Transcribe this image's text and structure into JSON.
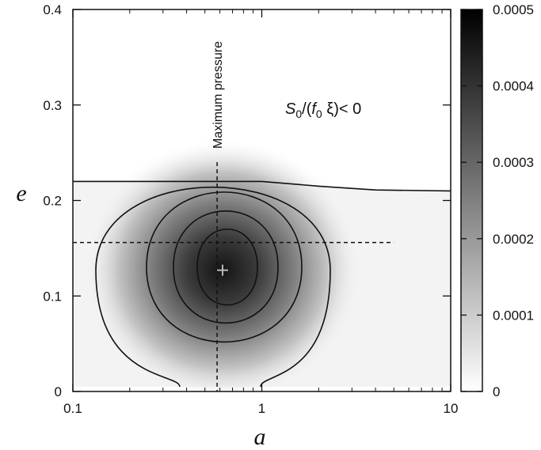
{
  "chart_data": {
    "type": "heatmap",
    "title": "",
    "xlabel": "a",
    "ylabel": "e",
    "x_scale": "log",
    "xlim": [
      0.1,
      10
    ],
    "ylim": [
      0,
      0.4
    ],
    "x_ticks": [
      "0.1",
      "1",
      "10"
    ],
    "y_ticks": [
      "0",
      "0.1",
      "0.2",
      "0.3",
      "0.4"
    ],
    "colorbar": {
      "range": [
        0,
        0.0005
      ],
      "ticks": [
        "0",
        "0.0001",
        "0.0002",
        "0.0003",
        "0.0004",
        "0.0005"
      ],
      "colormap": "white-to-black"
    },
    "peak": {
      "a": 0.62,
      "e": 0.127,
      "value": 0.0005
    },
    "boundary_e": [
      {
        "a": 0.1,
        "e": 0.22
      },
      {
        "a": 1.0,
        "e": 0.22
      },
      {
        "a": 2.0,
        "e": 0.215
      },
      {
        "a": 4.0,
        "e": 0.211
      },
      {
        "a": 10.0,
        "e": 0.21
      }
    ],
    "region_label_parts": {
      "s": "S",
      "s_sub": "0",
      "open": "/(",
      "f": "f",
      "f_sub": "0",
      "xi": " ξ)",
      "rel": "< 0"
    },
    "reference_lines": {
      "vertical": {
        "a": 0.58,
        "label": "Maximum pressure"
      },
      "horizontal": {
        "e": 0.156
      }
    },
    "contour_levels": [
      0.0001,
      0.0002,
      0.0003,
      0.0004
    ],
    "grid": false
  }
}
